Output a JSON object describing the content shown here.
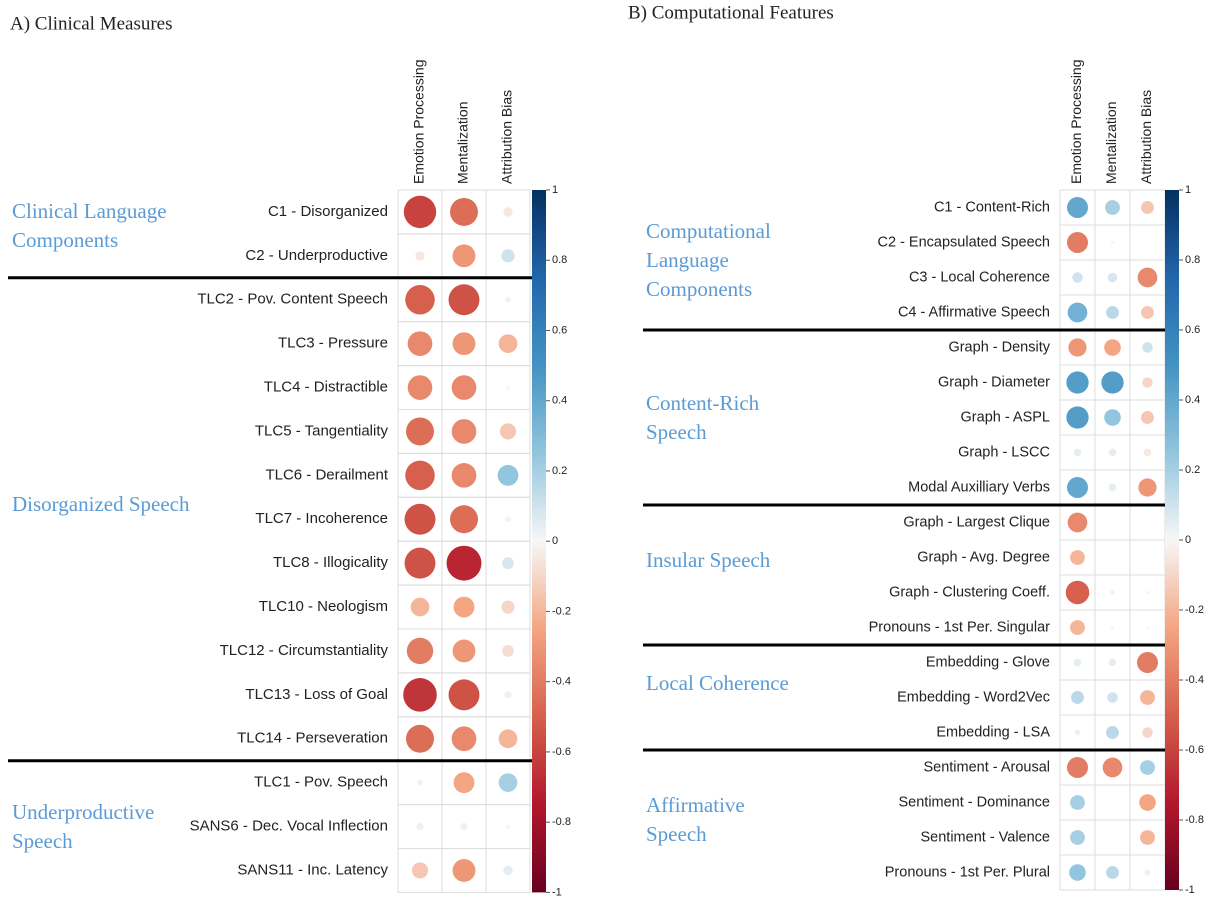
{
  "chart_data": [
    {
      "type": "correlogram",
      "title": "A) Clinical Measures",
      "columns": [
        "Emotion Processing",
        "Mentalization",
        "Attribution Bias"
      ],
      "lim": [
        -1,
        1
      ],
      "ticks": [
        1,
        0.8,
        0.6,
        0.4,
        0.2,
        0,
        -0.2,
        -0.4,
        -0.6,
        -0.8,
        -1
      ],
      "palette": [
        "#67001f",
        "#b2182b",
        "#d6604d",
        "#f4a582",
        "#f7f7f7",
        "#92c5de",
        "#4393c3",
        "#2166ac",
        "#053061"
      ],
      "groups": [
        {
          "label": "Clinical Language Components",
          "rows": [
            {
              "name": "C1 - Disorganized",
              "values": [
                -0.6,
                -0.45,
                -0.05
              ]
            },
            {
              "name": "C2 - Underproductive",
              "values": [
                -0.05,
                -0.3,
                0.1
              ]
            }
          ]
        },
        {
          "label": "Disorganized Speech",
          "rows": [
            {
              "name": "TLC2 - Pov. Content Speech",
              "values": [
                -0.5,
                -0.55,
                -0.02
              ]
            },
            {
              "name": "TLC3 - Pressure",
              "values": [
                -0.35,
                -0.3,
                -0.2
              ]
            },
            {
              "name": "TLC4 - Distractible",
              "values": [
                -0.35,
                -0.35,
                -0.01
              ]
            },
            {
              "name": "TLC5 - Tangentiality",
              "values": [
                -0.45,
                -0.35,
                -0.15
              ]
            },
            {
              "name": "TLC6 - Derailment",
              "values": [
                -0.5,
                -0.35,
                0.25
              ]
            },
            {
              "name": "TLC7 - Incoherence",
              "values": [
                -0.55,
                -0.45,
                0.02
              ]
            },
            {
              "name": "TLC8 - Illogicality",
              "values": [
                -0.55,
                -0.7,
                0.08
              ]
            },
            {
              "name": "TLC10 - Neologism",
              "values": [
                -0.2,
                -0.25,
                -0.1
              ]
            },
            {
              "name": "TLC12 - Circumstantiality",
              "values": [
                -0.4,
                -0.3,
                -0.08
              ]
            },
            {
              "name": "TLC13 - Loss of Goal",
              "values": [
                -0.65,
                -0.55,
                0.03
              ]
            },
            {
              "name": "TLC14 - Perseveration",
              "values": [
                -0.45,
                -0.35,
                -0.2
              ]
            }
          ]
        },
        {
          "label": "Underproductive Speech",
          "rows": [
            {
              "name": "TLC1 - Pov. Speech",
              "values": [
                0.02,
                -0.25,
                0.2
              ]
            },
            {
              "name": "SANS6 - Dec. Vocal Inflection",
              "values": [
                0.03,
                0.03,
                0.01
              ]
            },
            {
              "name": "SANS11 - Inc. Latency",
              "values": [
                -0.15,
                -0.3,
                0.05
              ]
            }
          ]
        }
      ]
    },
    {
      "type": "correlogram",
      "title": "B) Computational Features",
      "columns": [
        "Emotion Processing",
        "Mentalization",
        "Attribution Bias"
      ],
      "lim": [
        -1,
        1
      ],
      "ticks": [
        1,
        0.8,
        0.6,
        0.4,
        0.2,
        0,
        -0.2,
        -0.4,
        -0.6,
        -0.8,
        -1
      ],
      "palette": [
        "#67001f",
        "#b2182b",
        "#d6604d",
        "#f4a582",
        "#f7f7f7",
        "#92c5de",
        "#4393c3",
        "#2166ac",
        "#053061"
      ],
      "groups": [
        {
          "label": "Computational Language Components",
          "rows": [
            {
              "name": "C1 - Content-Rich",
              "values": [
                0.4,
                0.2,
                -0.15
              ]
            },
            {
              "name": "C2 - Encapsulated Speech",
              "values": [
                -0.4,
                0.01,
                0.0
              ]
            },
            {
              "name": "C3 - Local Coherence",
              "values": [
                0.1,
                0.08,
                -0.35
              ]
            },
            {
              "name": "C4 - Affirmative Speech",
              "values": [
                0.35,
                0.15,
                -0.15
              ]
            }
          ]
        },
        {
          "label": "Content-Rich Speech",
          "rows": [
            {
              "name": "Graph - Density",
              "values": [
                -0.3,
                -0.25,
                0.1
              ]
            },
            {
              "name": "Graph - Diameter",
              "values": [
                0.45,
                0.45,
                -0.1
              ]
            },
            {
              "name": "Graph - ASPL",
              "values": [
                0.45,
                0.25,
                -0.15
              ]
            },
            {
              "name": "Graph - LSCC",
              "values": [
                0.05,
                0.05,
                -0.05
              ]
            },
            {
              "name": "Modal Auxilliary Verbs",
              "values": [
                0.4,
                0.05,
                -0.3
              ]
            }
          ]
        },
        {
          "label": "Insular Speech",
          "rows": [
            {
              "name": "Graph - Largest Clique",
              "values": [
                -0.35,
                0.0,
                0.0
              ]
            },
            {
              "name": "Graph - Avg. Degree",
              "values": [
                -0.2,
                0.0,
                0.0
              ]
            },
            {
              "name": "Graph - Clustering Coeff.",
              "values": [
                -0.5,
                0.02,
                0.01
              ]
            },
            {
              "name": "Pronouns - 1st Per. Singular",
              "values": [
                -0.2,
                0.01,
                0.01
              ]
            }
          ]
        },
        {
          "label": "Local Coherence",
          "rows": [
            {
              "name": "Embedding - Glove",
              "values": [
                0.05,
                0.05,
                -0.4
              ]
            },
            {
              "name": "Embedding - Word2Vec",
              "values": [
                0.15,
                0.1,
                -0.2
              ]
            },
            {
              "name": "Embedding - LSA",
              "values": [
                0.03,
                0.15,
                -0.1
              ]
            }
          ]
        },
        {
          "label": "Affirmative Speech",
          "rows": [
            {
              "name": "Sentiment - Arousal",
              "values": [
                -0.4,
                -0.35,
                0.2
              ]
            },
            {
              "name": "Sentiment - Dominance",
              "values": [
                0.2,
                0.0,
                -0.25
              ]
            },
            {
              "name": "Sentiment - Valence",
              "values": [
                0.2,
                0.0,
                -0.2
              ]
            },
            {
              "name": "Pronouns - 1st Per. Plural",
              "values": [
                0.25,
                0.15,
                -0.03
              ]
            }
          ]
        }
      ]
    }
  ]
}
